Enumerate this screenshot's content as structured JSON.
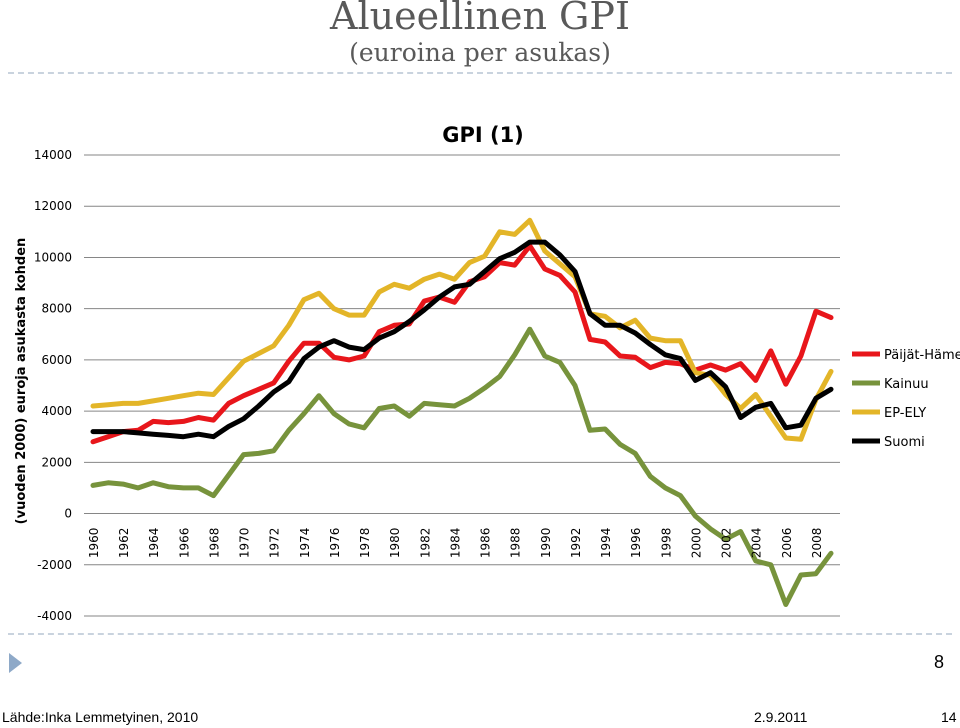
{
  "slide": {
    "title": "Alueellinen GPI",
    "subtitle": "(euroina per asukas)",
    "number_box": "8",
    "footer_source": "Lähde:Inka Lemmetyinen, 2010",
    "footer_date": "2.9.2011",
    "footer_page": "14"
  },
  "chart_data": {
    "type": "line",
    "title": "GPI (1)",
    "ylabel": "(vuoden 2000) euroja asukasta kohden",
    "xlabel": "",
    "ylim": [
      -4000,
      14000
    ],
    "yticks": [
      -4000,
      -2000,
      0,
      2000,
      4000,
      6000,
      8000,
      10000,
      12000,
      14000
    ],
    "xticks": [
      "1960",
      "1962",
      "1964",
      "1966",
      "1968",
      "1970",
      "1972",
      "1974",
      "1976",
      "1978",
      "1980",
      "1982",
      "1984",
      "1986",
      "1988",
      "1990",
      "1992",
      "1994",
      "1996",
      "1998",
      "2000",
      "2002",
      "2004",
      "2006",
      "2008"
    ],
    "x": [
      1960,
      1961,
      1962,
      1963,
      1964,
      1965,
      1966,
      1967,
      1968,
      1969,
      1970,
      1971,
      1972,
      1973,
      1974,
      1975,
      1976,
      1977,
      1978,
      1979,
      1980,
      1981,
      1982,
      1983,
      1984,
      1985,
      1986,
      1987,
      1988,
      1989,
      1990,
      1991,
      1992,
      1993,
      1994,
      1995,
      1996,
      1997,
      1998,
      1999,
      2000,
      2001,
      2002,
      2003,
      2004,
      2005,
      2006,
      2007,
      2008,
      2009
    ],
    "grid": "horizontal",
    "legend_position": "right",
    "series": [
      {
        "name": "Päijät-Häme",
        "color": "#e8161b",
        "values": [
          2800,
          3000,
          3200,
          3250,
          3600,
          3550,
          3600,
          3750,
          3650,
          4300,
          4600,
          4850,
          5100,
          5950,
          6650,
          6650,
          6100,
          6000,
          6150,
          7100,
          7350,
          7400,
          8300,
          8450,
          8250,
          9050,
          9250,
          9800,
          9700,
          10450,
          9550,
          9300,
          8650,
          6800,
          6700,
          6150,
          6100,
          5700,
          5900,
          5850,
          5600,
          5800,
          5600,
          5850,
          5200,
          6350,
          5050,
          6150,
          7900,
          7650
        ]
      },
      {
        "name": "Kainuu",
        "color": "#77933c",
        "values": [
          1100,
          1200,
          1150,
          1000,
          1200,
          1050,
          1000,
          1000,
          700,
          1500,
          2300,
          2350,
          2450,
          3250,
          3900,
          4600,
          3900,
          3500,
          3350,
          4100,
          4200,
          3800,
          4300,
          4250,
          4200,
          4500,
          4900,
          5350,
          6200,
          7200,
          6150,
          5900,
          5000,
          3250,
          3300,
          2700,
          2350,
          1450,
          1000,
          700,
          -100,
          -600,
          -1000,
          -700,
          -1850,
          -2000,
          -3550,
          -2400,
          -2350,
          -1550
        ]
      },
      {
        "name": "EP-ELY",
        "color": "#e3b528",
        "values": [
          4200,
          4250,
          4300,
          4300,
          4400,
          4500,
          4600,
          4700,
          4650,
          5300,
          5950,
          6250,
          6550,
          7350,
          8350,
          8600,
          8000,
          7750,
          7750,
          8650,
          8950,
          8800,
          9150,
          9350,
          9150,
          9800,
          10050,
          11000,
          10900,
          11450,
          10250,
          9750,
          9250,
          7800,
          7700,
          7250,
          7550,
          6850,
          6750,
          6750,
          5500,
          5400,
          4650,
          4100,
          4650,
          3800,
          2950,
          2900,
          4450,
          5550
        ]
      },
      {
        "name": "Suomi",
        "color": "#000000",
        "values": [
          3200,
          3200,
          3200,
          3150,
          3100,
          3050,
          3000,
          3100,
          3000,
          3400,
          3700,
          4200,
          4750,
          5150,
          6050,
          6500,
          6750,
          6500,
          6400,
          6850,
          7100,
          7500,
          7950,
          8450,
          8850,
          8950,
          9450,
          9950,
          10200,
          10600,
          10600,
          10100,
          9450,
          7800,
          7350,
          7350,
          7050,
          6600,
          6200,
          6050,
          5200,
          5500,
          4950,
          3750,
          4150,
          4300,
          3350,
          3450,
          4500,
          4850
        ]
      }
    ]
  }
}
